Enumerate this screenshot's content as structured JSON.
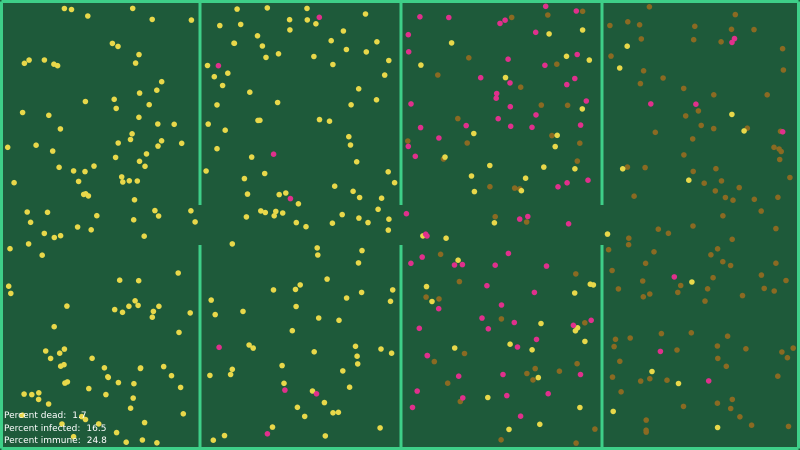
{
  "simulation": {
    "background_color": "#1e5a3a",
    "wall_color": "#3ecf88",
    "state_colors": {
      "healthy": "#e8d84a",
      "infected": "#e0308c",
      "recovered": "#8a6a22"
    },
    "dot_density": {
      "regions": [
        {
          "name": "room-1",
          "healthy": 130,
          "infected": 0,
          "recovered": 0
        },
        {
          "name": "room-2",
          "healthy": 120,
          "infected": 8,
          "recovered": 0
        },
        {
          "name": "room-3",
          "healthy": 40,
          "infected": 70,
          "recovered": 40
        },
        {
          "name": "room-4",
          "healthy": 12,
          "infected": 8,
          "recovered": 110
        }
      ]
    }
  },
  "stats": {
    "dead_label": "Percent dead:",
    "dead_value": "1.7",
    "infected_label": "Percent infected:",
    "infected_value": "16.5",
    "immune_label": "Percent immune:",
    "immune_value": "24.8"
  }
}
